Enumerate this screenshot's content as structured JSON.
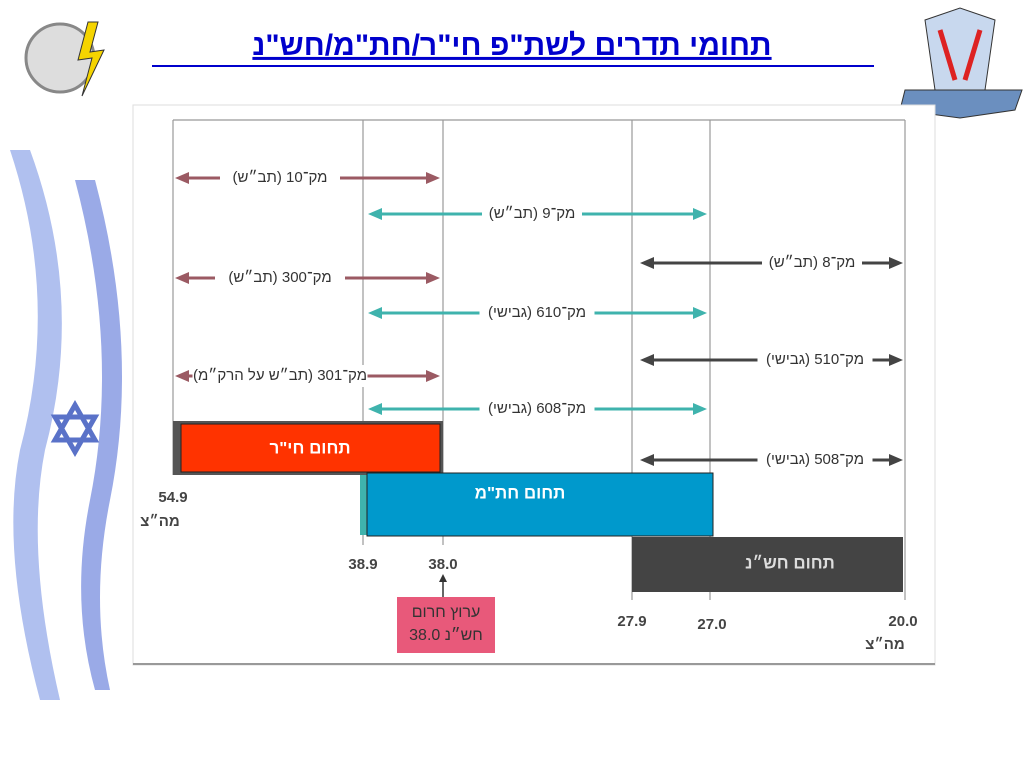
{
  "title": "תחומי תדרים לשת\"פ חי\"ר/חת\"מ/חש\"נ",
  "ranges": [
    {
      "label": "מק־10 (תב״ש)"
    },
    {
      "label": "מק־9 (תב״ש)"
    },
    {
      "label": "מק־8 (תב״ש)"
    },
    {
      "label": "מק־300 (תב״ש)"
    },
    {
      "label": "מק־610 (גבישי)"
    },
    {
      "label": "מק־510 (גבישי)"
    },
    {
      "label": "מק־301 (תב״ש על הרק״מ)"
    },
    {
      "label": "מק־608 (גבישי)"
    },
    {
      "label": "מק־508 (גבישי)"
    }
  ],
  "bands": [
    {
      "label": "תחום חי\"ר"
    },
    {
      "label": "תחום חת\"מ"
    },
    {
      "label": "תחום חש״נ"
    }
  ],
  "axis": {
    "unit": "מה״צ",
    "ticks": [
      "54.9",
      "38.9",
      "38.0",
      "27.9",
      "27.0",
      "20.0"
    ]
  },
  "emergency": {
    "lines": [
      "ערוץ חרום",
      "חש״נ 38.0"
    ]
  }
}
